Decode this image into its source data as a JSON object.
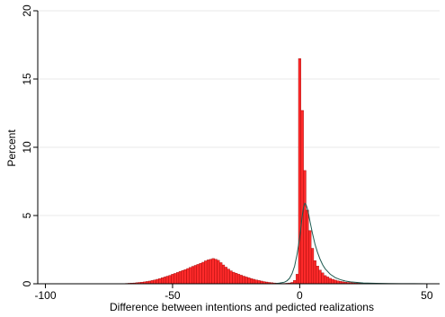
{
  "chart_data": {
    "type": "bar",
    "title": "",
    "xlabel": "Difference between intentions and pedicted realizations",
    "ylabel": "Percent",
    "xlim": [
      -103,
      55
    ],
    "ylim": [
      0,
      20
    ],
    "x_ticks": [
      -100,
      -50,
      0,
      50
    ],
    "x_tick_labels": [
      "-100",
      "-50",
      "0",
      "50"
    ],
    "y_ticks": [
      0,
      5,
      10,
      15,
      20
    ],
    "y_tick_labels": [
      "0",
      "5",
      "10",
      "15",
      "20"
    ],
    "grid": "horizontal",
    "legend": "none",
    "bin_width": 1,
    "bar_color": "#ff2a2a",
    "bar_edge_color": "#8b0000",
    "curve_color": "#1e5a50",
    "histogram": {
      "x": [
        -70,
        -69,
        -68,
        -67,
        -66,
        -65,
        -64,
        -63,
        -62,
        -61,
        -60,
        -59,
        -58,
        -57,
        -56,
        -55,
        -54,
        -53,
        -52,
        -51,
        -50,
        -49,
        -48,
        -47,
        -46,
        -45,
        -44,
        -43,
        -42,
        -41,
        -40,
        -39,
        -38,
        -37,
        -36,
        -35,
        -34,
        -33,
        -32,
        -31,
        -30,
        -29,
        -28,
        -27,
        -26,
        -25,
        -24,
        -23,
        -22,
        -21,
        -20,
        -19,
        -18,
        -17,
        -16,
        -15,
        -14,
        -13,
        -12,
        -11,
        -10,
        -9,
        -8,
        -7,
        -6,
        -5,
        -4,
        -3,
        -2,
        -1,
        0,
        1,
        2,
        3,
        4,
        5,
        6,
        7,
        8,
        9,
        10,
        11,
        12,
        13,
        14,
        15,
        16,
        17,
        18,
        19,
        20,
        21,
        22,
        23,
        24,
        25,
        26,
        27,
        28,
        29,
        30,
        31,
        32,
        33,
        34,
        35,
        36,
        37,
        38,
        39,
        40,
        41,
        42,
        43,
        44,
        45,
        46,
        47,
        48,
        49,
        50,
        51,
        52
      ],
      "y": [
        0.01,
        0.02,
        0.03,
        0.04,
        0.05,
        0.06,
        0.08,
        0.1,
        0.12,
        0.14,
        0.17,
        0.2,
        0.24,
        0.28,
        0.33,
        0.38,
        0.44,
        0.5,
        0.56,
        0.62,
        0.7,
        0.76,
        0.83,
        0.9,
        0.98,
        1.04,
        1.12,
        1.2,
        1.28,
        1.35,
        1.42,
        1.5,
        1.58,
        1.68,
        1.75,
        1.8,
        1.85,
        1.8,
        1.72,
        1.55,
        1.38,
        1.22,
        1.08,
        0.95,
        0.85,
        0.78,
        0.7,
        0.63,
        0.56,
        0.5,
        0.44,
        0.38,
        0.33,
        0.28,
        0.24,
        0.2,
        0.16,
        0.13,
        0.1,
        0.08,
        0.06,
        0.05,
        0.04,
        0.03,
        0.03,
        0.04,
        0.06,
        0.1,
        0.25,
        0.7,
        16.5,
        12.7,
        8.3,
        5.4,
        3.9,
        2.6,
        1.7,
        1.3,
        1.0,
        0.8,
        0.6,
        0.5,
        0.4,
        0.33,
        0.27,
        0.22,
        0.18,
        0.15,
        0.12,
        0.1,
        0.09,
        0.07,
        0.06,
        0.05,
        0.05,
        0.04,
        0.04,
        0.03,
        0.03,
        0.03,
        0.03,
        0.02,
        0.02,
        0.02,
        0.02,
        0.02,
        0.02,
        0.02,
        0.01,
        0.01,
        0.01,
        0.01,
        0.01,
        0.01,
        0.01,
        0.01,
        0.01,
        0.01,
        0.01,
        0.01,
        0.01,
        0.01,
        0.01
      ]
    },
    "density_curve": {
      "x": [
        -10,
        -8,
        -6,
        -5,
        -4,
        -3,
        -2,
        -1,
        0,
        0.5,
        1,
        1.5,
        2,
        2.5,
        3,
        3.5,
        4,
        5,
        6,
        7,
        8,
        9,
        10,
        12,
        14,
        16,
        18,
        20,
        25,
        30,
        35,
        40,
        45,
        50,
        55
      ],
      "y": [
        0.0,
        0.05,
        0.12,
        0.22,
        0.4,
        0.75,
        1.3,
        2.2,
        3.4,
        4.2,
        5.0,
        5.6,
        5.9,
        5.8,
        5.5,
        5.1,
        4.6,
        3.7,
        2.9,
        2.3,
        1.8,
        1.4,
        1.1,
        0.7,
        0.45,
        0.3,
        0.2,
        0.14,
        0.06,
        0.03,
        0.015,
        0.01,
        0.005,
        0.003,
        0.0
      ]
    }
  }
}
